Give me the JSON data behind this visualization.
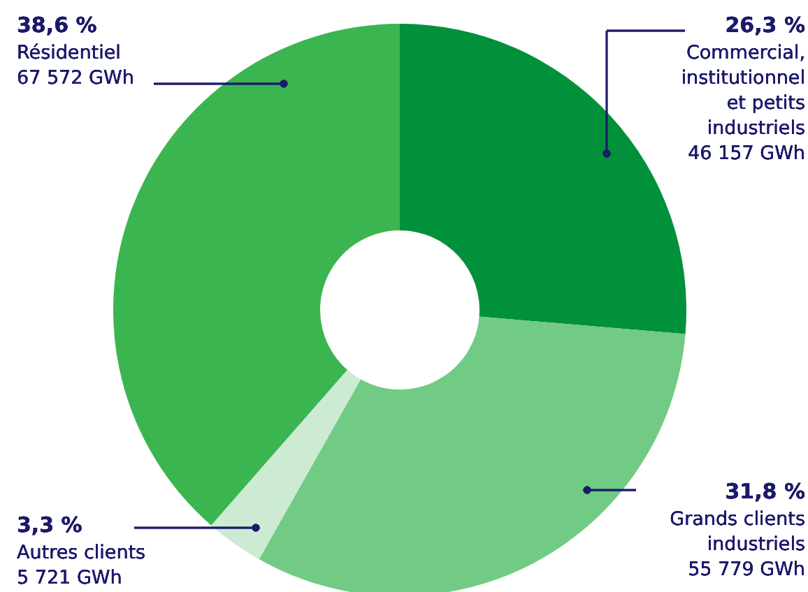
{
  "chart_data": {
    "type": "donut",
    "categories": [
      "Commercial, institutionnel et petits industriels",
      "Grands clients industriels",
      "Autres clients",
      "Résidentiel"
    ],
    "values": [
      46157,
      55779,
      5721,
      67572
    ],
    "value_labels": [
      "46 157 GWh",
      "55 779 GWh",
      "5 721 GWh",
      "67 572 GWh"
    ],
    "annotations": [
      "26,3 %",
      "31,8 %",
      "3,3 %",
      "38,6 %"
    ],
    "colors": [
      "#00913a",
      "#72cb84",
      "#cdebd2",
      "#3bb54f"
    ]
  }
}
